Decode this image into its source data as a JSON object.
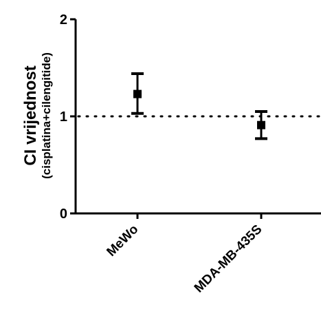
{
  "chart_data": {
    "type": "scatter",
    "categories": [
      "MeWo",
      "MDA-MB-435S"
    ],
    "values": [
      1.23,
      0.91
    ],
    "error_low": [
      1.03,
      0.77
    ],
    "error_high": [
      1.44,
      1.05
    ],
    "ylabel": "CI vrijednost",
    "ylabel_sub": "(cisplatina+cilengitide)",
    "ylim": [
      0,
      2
    ],
    "yticks": [
      0,
      1,
      2
    ],
    "ytick_labels": [
      "0",
      "1",
      "2"
    ],
    "reference_line": 1,
    "reference_line_style": "dotted",
    "grid": false,
    "marker_color": "#000000"
  }
}
